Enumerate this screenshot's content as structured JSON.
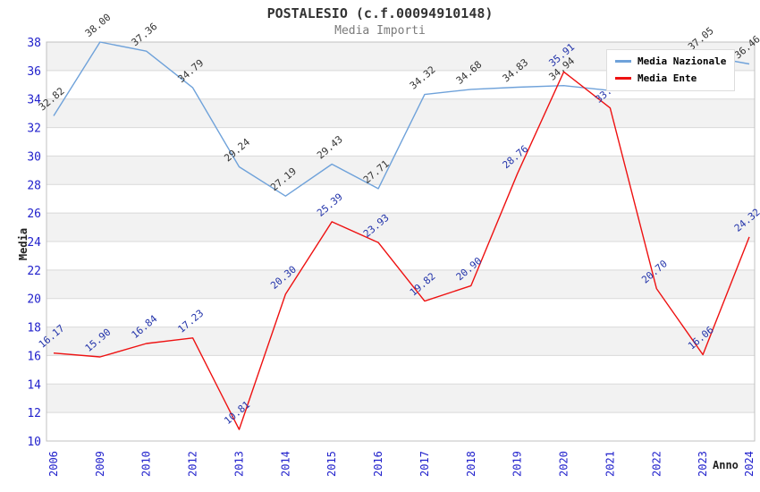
{
  "title": "POSTALESIO (c.f.00094910148)",
  "subtitle": "Media Importi",
  "chart_data": {
    "type": "line",
    "title": "POSTALESIO (c.f.00094910148)",
    "subtitle": "Media Importi",
    "xlabel": "Anno",
    "ylabel": "Media",
    "ylim": [
      10,
      38
    ],
    "ytick_step": 2,
    "yticks": [
      10,
      12,
      14,
      16,
      18,
      20,
      22,
      24,
      26,
      28,
      30,
      32,
      34,
      36,
      38
    ],
    "grid": true,
    "legend_position": "top-right",
    "categories": [
      "2006",
      "2009",
      "2010",
      "2012",
      "2013",
      "2014",
      "2015",
      "2016",
      "2017",
      "2018",
      "2019",
      "2020",
      "2021",
      "2022",
      "2023",
      "2024"
    ],
    "series": [
      {
        "name": "Media Nazionale",
        "color": "#6FA2DA",
        "label_color": "#333333",
        "values": [
          32.82,
          38.0,
          37.36,
          34.79,
          29.24,
          27.19,
          29.43,
          27.71,
          34.32,
          34.68,
          34.83,
          34.94,
          34.6,
          35.8,
          37.05,
          36.46
        ],
        "labels": [
          "32.82",
          "38.00",
          "37.36",
          "34.79",
          "29.24",
          "27.19",
          "29.43",
          "27.71",
          "34.32",
          "34.68",
          "34.83",
          "34.94",
          null,
          null,
          "37.05",
          "36.46"
        ]
      },
      {
        "name": "Media Ente",
        "color": "#EE1111",
        "label_color": "#2233AA",
        "values": [
          16.17,
          15.9,
          16.84,
          17.23,
          10.81,
          20.3,
          25.39,
          23.93,
          19.82,
          20.9,
          28.76,
          35.91,
          33.37,
          20.7,
          16.06,
          24.32
        ],
        "labels": [
          "16.17",
          "15.90",
          "16.84",
          "17.23",
          "10.81",
          "20.30",
          "25.39",
          "23.93",
          "19.82",
          "20.90",
          "28.76",
          "35.91",
          "33.37",
          "20.70",
          "16.06",
          "24.32"
        ]
      }
    ]
  },
  "colors": {
    "tick_label": "#2222CC",
    "band_fill": "#F2F2F2",
    "grid_line": "#D9D9D9",
    "plot_border": "#C0C0C0",
    "title_text": "#333333",
    "subtitle_text": "#7A7A7A"
  }
}
